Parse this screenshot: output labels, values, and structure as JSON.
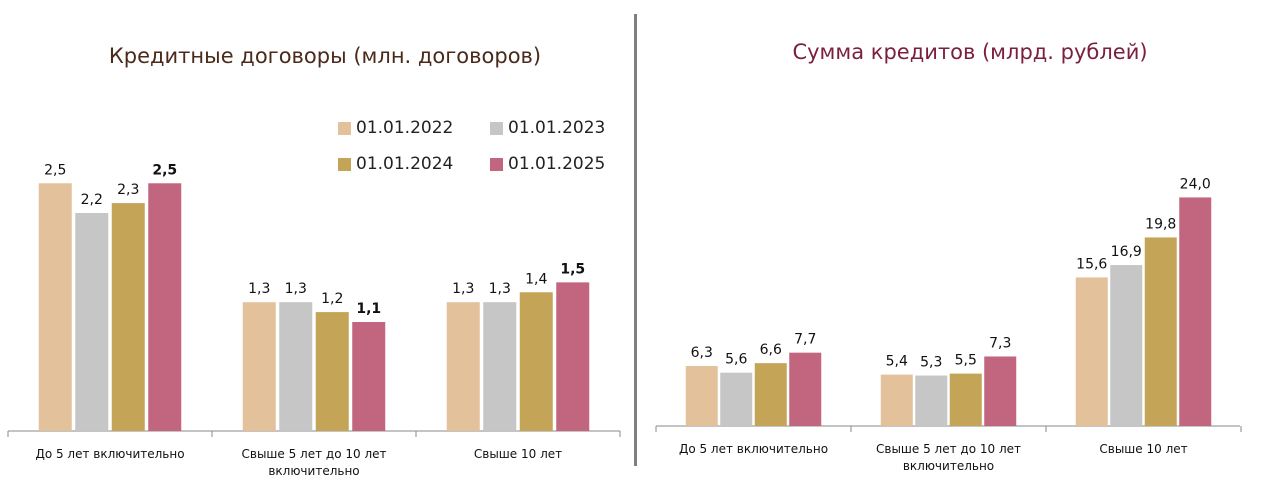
{
  "colors": [
    "#e3c29b",
    "#c6c6c6",
    "#c4a456",
    "#c1667e"
  ],
  "legend": [
    "01.01.2022",
    "01.01.2023",
    "01.01.2024",
    "01.01.2025"
  ],
  "chart_data": [
    {
      "type": "bar",
      "title": "Кредитные договоры (млн. договоров)",
      "categories": [
        "До 5 лет включительно",
        "Свыше 5 лет до 10 лет включительно",
        "Свыше 10 лет"
      ],
      "series": [
        {
          "name": "01.01.2022",
          "values": [
            2.5,
            1.3,
            1.3
          ],
          "labels": [
            "2,5",
            "1,3",
            "1,3"
          ]
        },
        {
          "name": "01.01.2023",
          "values": [
            2.2,
            1.3,
            1.3
          ],
          "labels": [
            "2,2",
            "1,3",
            "1,3"
          ]
        },
        {
          "name": "01.01.2024",
          "values": [
            2.3,
            1.2,
            1.4
          ],
          "labels": [
            "2,3",
            "1,2",
            "1,4"
          ]
        },
        {
          "name": "01.01.2025",
          "values": [
            2.5,
            1.1,
            1.5
          ],
          "labels": [
            "2,5",
            "1,1",
            "1,5"
          ],
          "bold": true
        }
      ],
      "ylim": [
        0,
        3.3
      ],
      "legend_position": "top-right"
    },
    {
      "type": "bar",
      "title": "Сумма кредитов (млрд. рублей)",
      "categories": [
        "До 5 лет включительно",
        "Свыше 5 лет до 10 лет включительно",
        "Свыше 10 лет"
      ],
      "series": [
        {
          "name": "01.01.2022",
          "values": [
            6.3,
            5.4,
            15.6
          ],
          "labels": [
            "6,3",
            "5,4",
            "15,6"
          ]
        },
        {
          "name": "01.01.2023",
          "values": [
            5.6,
            5.3,
            16.9
          ],
          "labels": [
            "5,6",
            "5,3",
            "16,9"
          ]
        },
        {
          "name": "01.01.2024",
          "values": [
            6.6,
            5.5,
            19.8
          ],
          "labels": [
            "6,6",
            "5,5",
            "19,8"
          ]
        },
        {
          "name": "01.01.2025",
          "values": [
            7.7,
            7.3,
            24.0
          ],
          "labels": [
            "7,7",
            "7,3",
            "24,0"
          ]
        }
      ],
      "ylim": [
        0,
        31.5
      ]
    }
  ]
}
